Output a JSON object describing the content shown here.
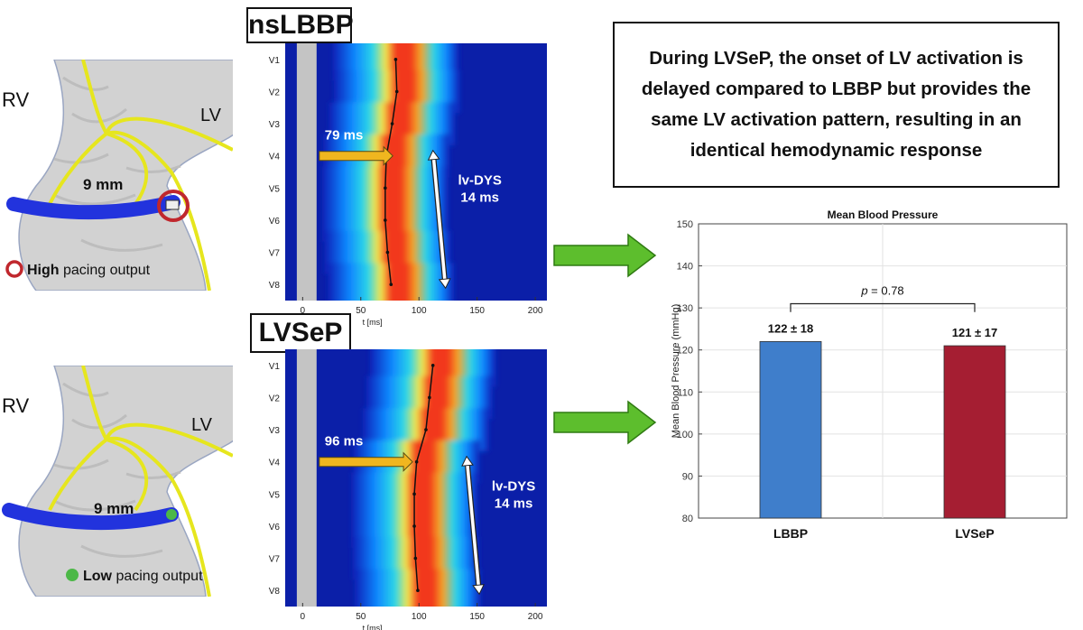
{
  "panels": [
    {
      "title": "nsLBBP",
      "diagram": {
        "rv_label": "RV",
        "lv_label": "LV",
        "distance_label": "9 mm",
        "legend_bold": "High",
        "legend_rest": " pacing output",
        "marker": "red-ring"
      },
      "heatmap": {
        "leads": [
          "V1",
          "V2",
          "V3",
          "V4",
          "V5",
          "V6",
          "V7",
          "V8"
        ],
        "x_ticks": [
          "0",
          "50",
          "100",
          "150",
          "200"
        ],
        "xlim": [
          -15,
          210
        ],
        "xlabel": "t  [ms]",
        "stim_window_ms": [
          -5,
          12
        ],
        "activation_ms": [
          80,
          81,
          77,
          72,
          71,
          71,
          73,
          76
        ],
        "arrow_label": "79 ms",
        "dys_label_1": "lv-DYS",
        "dys_label_2": "14 ms"
      }
    },
    {
      "title": "LVSeP",
      "diagram": {
        "rv_label": "RV",
        "lv_label": "LV",
        "distance_label": "9 mm",
        "legend_bold": "Low",
        "legend_rest": " pacing output",
        "marker": "green-dot"
      },
      "heatmap": {
        "leads": [
          "V1",
          "V2",
          "V3",
          "V4",
          "V5",
          "V6",
          "V7",
          "V8"
        ],
        "x_ticks": [
          "0",
          "50",
          "100",
          "150",
          "200"
        ],
        "xlim": [
          -15,
          210
        ],
        "xlabel": "t  [ms]",
        "stim_window_ms": [
          -5,
          12
        ],
        "activation_ms": [
          112,
          109,
          106,
          98,
          96,
          96,
          97,
          99
        ],
        "arrow_label": "96 ms",
        "dys_label_1": "lv-DYS",
        "dys_label_2": "14 ms"
      }
    }
  ],
  "summary": {
    "line1": "During LVSeP, the onset of LV activation is",
    "line2": "delayed compared to LBBP but provides the",
    "line3": "same LV activation pattern, resulting in an",
    "line4": "identical hemodynamic response"
  },
  "chart_data": {
    "type": "bar",
    "title": "Mean Blood Pressure",
    "categories": [
      "LBBP",
      "LVSeP"
    ],
    "values": [
      122,
      121
    ],
    "value_labels": [
      "122 ± 18",
      "121 ± 17"
    ],
    "ylabel": "Mean Blood Pressure (mmHg)",
    "ylim": [
      80,
      150
    ],
    "y_ticks": [
      "80",
      "90",
      "100",
      "110",
      "120",
      "130",
      "140",
      "150"
    ],
    "bar_colors": [
      "#3F7ECB",
      "#A51E32"
    ],
    "grid": true,
    "annotation_p": "p",
    "annotation_value": " = 0.78"
  },
  "colors": {
    "arrow_green": "#5DBE2D",
    "ring_red": "#C0272D",
    "dot_green": "#4CB847"
  }
}
